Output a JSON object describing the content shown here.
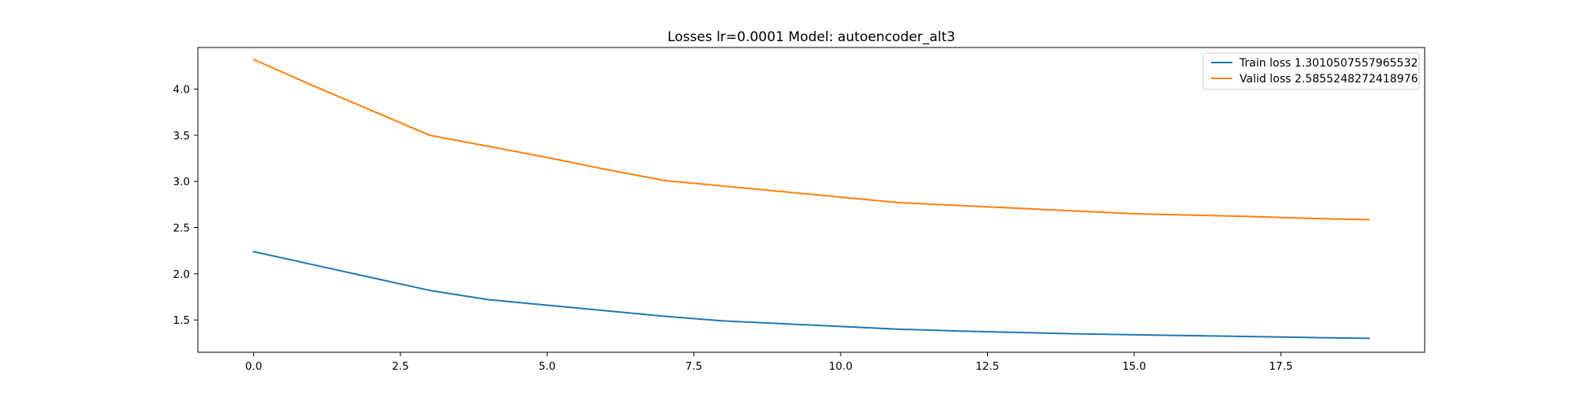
{
  "chart_data": {
    "type": "line",
    "title": "Losses lr=0.0001 Model: autoencoder_alt3",
    "xlabel": "",
    "ylabel": "",
    "xlim": [
      -0.95,
      19.95
    ],
    "ylim": [
      1.15,
      4.45
    ],
    "xticks": [
      0.0,
      2.5,
      5.0,
      7.5,
      10.0,
      12.5,
      15.0,
      17.5
    ],
    "xtick_labels": [
      "0.0",
      "2.5",
      "5.0",
      "7.5",
      "10.0",
      "12.5",
      "15.0",
      "17.5"
    ],
    "yticks": [
      1.5,
      2.0,
      2.5,
      3.0,
      3.5,
      4.0
    ],
    "ytick_labels": [
      "1.5",
      "2.0",
      "2.5",
      "3.0",
      "3.5",
      "4.0"
    ],
    "grid": false,
    "legend_position": "top-right",
    "x": [
      0,
      1,
      2,
      3,
      4,
      5,
      6,
      7,
      8,
      9,
      10,
      11,
      12,
      13,
      14,
      15,
      16,
      17,
      18,
      19
    ],
    "series": [
      {
        "name": "Train loss 1.3010507557965532",
        "color": "#1f77b4",
        "values": [
          2.24,
          2.1,
          1.96,
          1.82,
          1.72,
          1.66,
          1.6,
          1.54,
          1.49,
          1.46,
          1.43,
          1.4,
          1.38,
          1.365,
          1.35,
          1.34,
          1.33,
          1.32,
          1.31,
          1.301
        ]
      },
      {
        "name": "Valid loss 2.5855248272418976",
        "color": "#ff7f0e",
        "values": [
          4.32,
          4.04,
          3.77,
          3.5,
          3.38,
          3.26,
          3.13,
          3.01,
          2.95,
          2.89,
          2.83,
          2.77,
          2.74,
          2.71,
          2.68,
          2.65,
          2.635,
          2.62,
          2.6,
          2.586
        ]
      }
    ]
  }
}
